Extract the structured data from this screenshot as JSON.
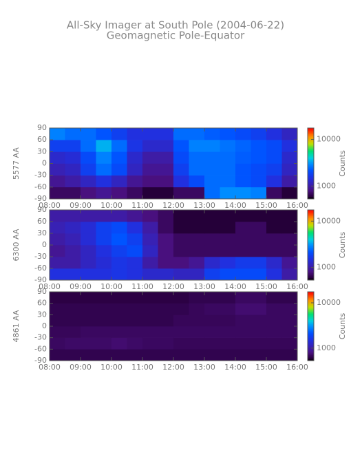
{
  "title": "All-Sky Imager at South Pole (2004-06-22)",
  "subtitle": "Geomagnetic Pole-Equator",
  "chart_data": [
    {
      "type": "heatmap",
      "ylabel": "5577 AA",
      "colorbar_label": "Counts",
      "log_color": true,
      "xlim": [
        8,
        16
      ],
      "xticks": [
        {
          "value": 8,
          "label": "08:00"
        },
        {
          "value": 9,
          "label": "09:00"
        },
        {
          "value": 10,
          "label": "10:00"
        },
        {
          "value": 11,
          "label": "11:00"
        },
        {
          "value": 12,
          "label": "12:00"
        },
        {
          "value": 13,
          "label": "13:00"
        },
        {
          "value": 14,
          "label": "14:00"
        },
        {
          "value": 15,
          "label": "15:00"
        },
        {
          "value": 16,
          "label": "16:00"
        }
      ],
      "ylim": [
        -90,
        90
      ],
      "yticks": [
        -90,
        -60,
        -30,
        0,
        30,
        60,
        90
      ],
      "clim": [
        530,
        17500
      ],
      "cticks": [
        1000,
        10000
      ],
      "x_bins": [
        8,
        8.5,
        9,
        9.5,
        10,
        10.5,
        11,
        11.5,
        12,
        12.5,
        13,
        13.5,
        14,
        14.5,
        15,
        15.5,
        16
      ],
      "y_bins": [
        -90,
        -60,
        -30,
        0,
        30,
        60,
        90
      ],
      "z": [
        [
          700,
          700,
          800,
          900,
          800,
          700,
          600,
          600,
          700,
          700,
          2500,
          3000,
          3000,
          2800,
          700,
          600
        ],
        [
          900,
          1000,
          1200,
          1500,
          1200,
          900,
          800,
          800,
          1500,
          2000,
          2500,
          2500,
          2200,
          2000,
          1500,
          1000
        ],
        [
          1100,
          1200,
          1800,
          2500,
          2000,
          1200,
          900,
          900,
          1800,
          2500,
          2500,
          2500,
          2200,
          2000,
          1800,
          1200
        ],
        [
          1300,
          1400,
          2000,
          2800,
          2200,
          1300,
          1000,
          1000,
          2000,
          2500,
          2500,
          2500,
          2300,
          2200,
          2000,
          1300
        ],
        [
          1800,
          1800,
          2500,
          3500,
          2500,
          1600,
          1300,
          1300,
          2200,
          2800,
          2800,
          2600,
          2400,
          2200,
          2000,
          1500
        ],
        [
          2800,
          2500,
          2500,
          2200,
          1800,
          1500,
          1500,
          1500,
          2500,
          2500,
          2300,
          2200,
          2000,
          1800,
          1500,
          1200
        ]
      ]
    },
    {
      "type": "heatmap",
      "ylabel": "6300 AA",
      "colorbar_label": "Counts",
      "log_color": true,
      "xlim": [
        8,
        16
      ],
      "xticks": [
        {
          "value": 8,
          "label": "08:00"
        },
        {
          "value": 9,
          "label": "09:00"
        },
        {
          "value": 10,
          "label": "10:00"
        },
        {
          "value": 11,
          "label": "11:00"
        },
        {
          "value": 12,
          "label": "12:00"
        },
        {
          "value": 13,
          "label": "13:00"
        },
        {
          "value": 14,
          "label": "14:00"
        },
        {
          "value": 15,
          "label": "15:00"
        },
        {
          "value": 16,
          "label": "16:00"
        }
      ],
      "ylim": [
        -90,
        90
      ],
      "yticks": [
        -90,
        -60,
        -30,
        0,
        30,
        60,
        90
      ],
      "clim": [
        530,
        17500
      ],
      "cticks": [
        1000,
        10000
      ],
      "x_bins": [
        8,
        8.5,
        9,
        9.5,
        10,
        10.5,
        11,
        11.5,
        12,
        12.5,
        13,
        13.5,
        14,
        14.5,
        15,
        15.5,
        16
      ],
      "y_bins": [
        -90,
        -60,
        -30,
        0,
        30,
        60,
        90
      ],
      "z": [
        [
          1500,
          1500,
          1500,
          1500,
          1600,
          1500,
          1300,
          1300,
          1200,
          1200,
          1800,
          2000,
          2000,
          2000,
          1500,
          1000
        ],
        [
          1000,
          1000,
          1200,
          1400,
          1600,
          1500,
          1000,
          800,
          800,
          900,
          1300,
          1500,
          1700,
          1700,
          1300,
          900
        ],
        [
          900,
          1000,
          1200,
          1500,
          1800,
          2000,
          1200,
          800,
          700,
          700,
          700,
          700,
          700,
          700,
          700,
          700
        ],
        [
          1000,
          1100,
          1400,
          1800,
          2200,
          1800,
          1100,
          800,
          700,
          700,
          700,
          700,
          700,
          700,
          700,
          700
        ],
        [
          1100,
          1200,
          1400,
          1800,
          2000,
          1500,
          1000,
          700,
          600,
          600,
          600,
          600,
          700,
          700,
          600,
          600
        ],
        [
          1000,
          1000,
          1000,
          1000,
          1000,
          900,
          800,
          700,
          600,
          600,
          600,
          600,
          600,
          600,
          600,
          600
        ]
      ]
    },
    {
      "type": "heatmap",
      "ylabel": "4861 AA",
      "colorbar_label": "Counts",
      "log_color": true,
      "xlim": [
        8,
        16
      ],
      "xticks": [
        {
          "value": 8,
          "label": "08:00"
        },
        {
          "value": 9,
          "label": "09:00"
        },
        {
          "value": 10,
          "label": "10:00"
        },
        {
          "value": 11,
          "label": "11:00"
        },
        {
          "value": 12,
          "label": "12:00"
        },
        {
          "value": 13,
          "label": "13:00"
        },
        {
          "value": 14,
          "label": "14:00"
        },
        {
          "value": 15,
          "label": "15:00"
        },
        {
          "value": 16,
          "label": "16:00"
        }
      ],
      "ylim": [
        -90,
        90
      ],
      "yticks": [
        -90,
        -60,
        -30,
        0,
        30,
        60,
        90
      ],
      "clim": [
        530,
        17500
      ],
      "cticks": [
        1000,
        10000
      ],
      "x_bins": [
        8,
        8.5,
        9,
        9.5,
        10,
        10.5,
        11,
        11.5,
        12,
        12.5,
        13,
        13.5,
        14,
        14.5,
        15,
        15.5,
        16
      ],
      "y_bins": [
        -90,
        -60,
        -30,
        0,
        30,
        60,
        90
      ],
      "z": [
        [
          650,
          650,
          650,
          650,
          650,
          650,
          650,
          650,
          650,
          650,
          650,
          650,
          650,
          650,
          650,
          650
        ],
        [
          700,
          720,
          720,
          720,
          750,
          720,
          700,
          700,
          680,
          680,
          680,
          680,
          680,
          680,
          680,
          680
        ],
        [
          680,
          680,
          700,
          700,
          700,
          700,
          700,
          700,
          700,
          700,
          700,
          700,
          700,
          700,
          700,
          700
        ],
        [
          650,
          650,
          650,
          650,
          650,
          650,
          650,
          650,
          680,
          680,
          680,
          680,
          700,
          700,
          700,
          700
        ],
        [
          650,
          650,
          650,
          650,
          650,
          650,
          650,
          650,
          650,
          680,
          700,
          700,
          750,
          750,
          700,
          700
        ],
        [
          620,
          620,
          620,
          620,
          620,
          620,
          620,
          620,
          620,
          650,
          650,
          650,
          700,
          700,
          650,
          650
        ]
      ]
    }
  ]
}
